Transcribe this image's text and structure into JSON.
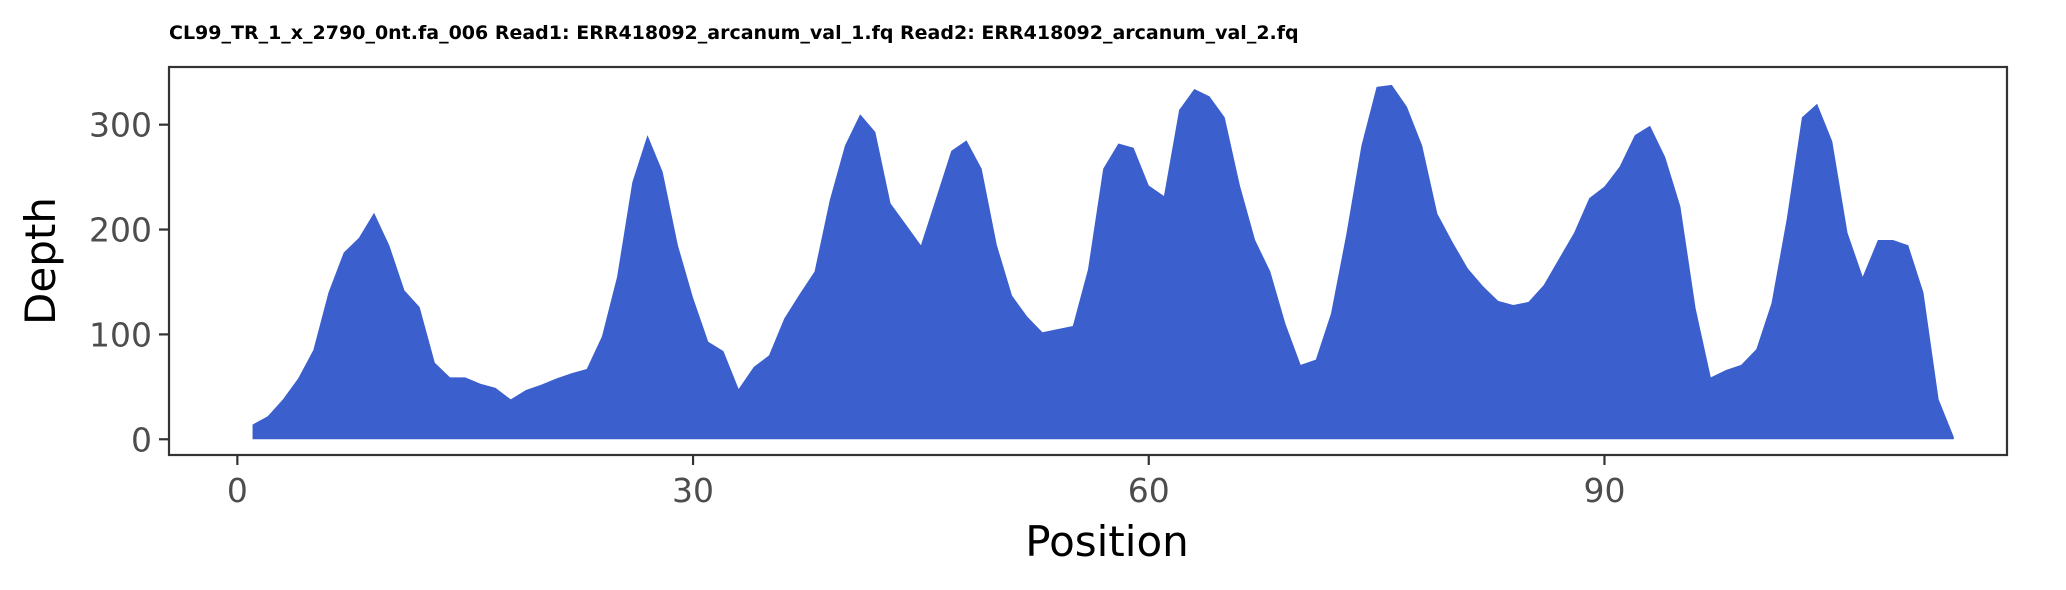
{
  "chart_data": {
    "type": "area",
    "title": "CL99_TR_1_x_2790_0nt.fa_006 Read1: ERR418092_arcanum_val_1.fq Read2: ERR418092_arcanum_val_2.fq",
    "xlabel": "Position",
    "ylabel": "Depth",
    "xlim": [
      -4.5,
      116.5
    ],
    "ylim": [
      -15,
      355
    ],
    "x_ticks": [
      0,
      30,
      60,
      90
    ],
    "y_ticks": [
      0,
      100,
      200,
      300
    ],
    "grid": false,
    "fill_color": "#3b5fcd",
    "series": [
      {
        "x": [
          1,
          2,
          3,
          4,
          5,
          6,
          7,
          8,
          9,
          10,
          11,
          12,
          13,
          14,
          15,
          16,
          17,
          18,
          19,
          20,
          21,
          22,
          23,
          24,
          25,
          26,
          27,
          28,
          29,
          30,
          31,
          32,
          33,
          34,
          35,
          36,
          37,
          38,
          39,
          40,
          41,
          42,
          43,
          44,
          45,
          46,
          47,
          48,
          49,
          50,
          51,
          52,
          53,
          54,
          55,
          56,
          57,
          58,
          59,
          60,
          61,
          62,
          63,
          64,
          65,
          66,
          67,
          68,
          69,
          70,
          71,
          72,
          73,
          74,
          75,
          76,
          77,
          78,
          79,
          80,
          81,
          82,
          83,
          84,
          85,
          86,
          87,
          88,
          89,
          90,
          91,
          92,
          93,
          94,
          95,
          96,
          97,
          98,
          99,
          100,
          101,
          102,
          103,
          104,
          105,
          106,
          107,
          108,
          109,
          110,
          111,
          112,
          113
        ],
        "values": [
          14,
          22,
          38,
          58,
          85,
          140,
          178,
          192,
          216,
          185,
          142,
          126,
          73,
          59,
          59,
          53,
          49,
          38,
          47,
          52,
          58,
          63,
          67,
          98,
          155,
          245,
          290,
          255,
          185,
          135,
          93,
          84,
          48,
          69,
          80,
          115,
          138,
          160,
          228,
          280,
          310,
          293,
          225,
          205,
          185,
          230,
          275,
          285,
          258,
          185,
          137,
          117,
          102,
          105,
          108,
          162,
          258,
          282,
          278,
          242,
          232,
          314,
          334,
          327,
          307,
          242,
          190,
          160,
          110,
          71,
          76,
          120,
          195,
          280,
          336,
          338,
          317,
          280,
          215,
          188,
          163,
          146,
          132,
          128,
          131,
          147,
          172,
          197,
          230,
          241,
          260,
          290,
          299,
          269,
          222,
          125,
          59,
          66,
          71,
          86,
          130,
          210,
          307,
          320,
          284,
          197,
          155,
          190,
          190,
          185,
          140,
          38,
          2
        ]
      }
    ]
  }
}
